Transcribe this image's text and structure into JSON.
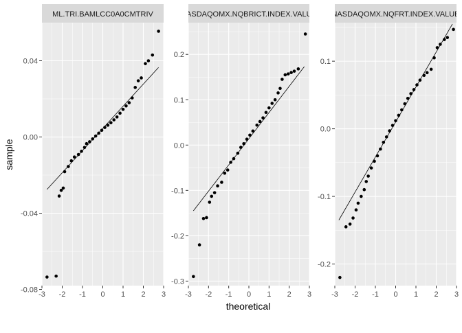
{
  "figure": {
    "xlabel": "theoretical",
    "ylabel": "sample",
    "panel_bg": "#ebebeb",
    "strip_bg": "#d9d9d9",
    "point_color": "#000000",
    "line_color": "#000000"
  },
  "chart_data": [
    {
      "type": "scatter",
      "strip_title": "ML.TRI.BAMLCC0A0CMTRIV",
      "xlim": [
        -3,
        3
      ],
      "ylim": [
        -0.078,
        0.06
      ],
      "x_ticks": [
        -3,
        -2,
        -1,
        0,
        1,
        2,
        3
      ],
      "y_ticks": [
        -0.08,
        -0.04,
        0.0,
        0.04
      ],
      "y_tick_labels": [
        "-0.08",
        "-0.04",
        "0.00",
        "0.04"
      ],
      "grid": true,
      "qq_line": {
        "x": [
          -2.75,
          2.75
        ],
        "y": [
          -0.0275,
          0.0365
        ]
      },
      "points": [
        [
          -2.75,
          -0.0735
        ],
        [
          -2.3,
          -0.073
        ],
        [
          -2.15,
          -0.031
        ],
        [
          -2.05,
          -0.028
        ],
        [
          -1.95,
          -0.0268
        ],
        [
          -1.88,
          -0.0182
        ],
        [
          -1.7,
          -0.0155
        ],
        [
          -1.55,
          -0.0125
        ],
        [
          -1.4,
          -0.0105
        ],
        [
          -1.2,
          -0.0092
        ],
        [
          -1.05,
          -0.0075
        ],
        [
          -0.9,
          -0.0055
        ],
        [
          -0.8,
          -0.0035
        ],
        [
          -0.65,
          -0.0025
        ],
        [
          -0.5,
          -0.001
        ],
        [
          -0.35,
          0.0005
        ],
        [
          -0.2,
          0.002
        ],
        [
          -0.05,
          0.0035
        ],
        [
          0.1,
          0.005
        ],
        [
          0.25,
          0.0062
        ],
        [
          0.4,
          0.0075
        ],
        [
          0.55,
          0.009
        ],
        [
          0.7,
          0.0105
        ],
        [
          0.85,
          0.0125
        ],
        [
          1.0,
          0.0145
        ],
        [
          1.15,
          0.0163
        ],
        [
          1.3,
          0.018
        ],
        [
          1.45,
          0.0205
        ],
        [
          1.6,
          0.026
        ],
        [
          1.75,
          0.0295
        ],
        [
          1.9,
          0.031
        ],
        [
          2.1,
          0.0385
        ],
        [
          2.25,
          0.04
        ],
        [
          2.45,
          0.043
        ],
        [
          2.75,
          0.0555
        ]
      ]
    },
    {
      "type": "scatter",
      "strip_title": "NASDAQOMX.NQBRICT.INDEX.VALUE",
      "xlim": [
        -3,
        3
      ],
      "ylim": [
        -0.31,
        0.27
      ],
      "x_ticks": [
        -3,
        -2,
        -1,
        0,
        1,
        2,
        3
      ],
      "y_ticks": [
        -0.3,
        -0.2,
        -0.1,
        0.0,
        0.1,
        0.2
      ],
      "y_tick_labels": [
        "-0.3",
        "-0.2",
        "-0.1",
        "0.0",
        "0.1",
        "0.2"
      ],
      "grid": true,
      "qq_line": {
        "x": [
          -2.75,
          2.75
        ],
        "y": [
          -0.145,
          0.173
        ]
      },
      "points": [
        [
          -2.75,
          -0.29
        ],
        [
          -2.45,
          -0.22
        ],
        [
          -2.25,
          -0.162
        ],
        [
          -2.1,
          -0.16
        ],
        [
          -1.95,
          -0.126
        ],
        [
          -1.85,
          -0.113
        ],
        [
          -1.7,
          -0.105
        ],
        [
          -1.55,
          -0.09
        ],
        [
          -1.35,
          -0.082
        ],
        [
          -1.2,
          -0.062
        ],
        [
          -1.05,
          -0.055
        ],
        [
          -0.9,
          -0.038
        ],
        [
          -0.75,
          -0.03
        ],
        [
          -0.55,
          -0.018
        ],
        [
          -0.4,
          -0.005
        ],
        [
          -0.25,
          0.003
        ],
        [
          -0.1,
          0.013
        ],
        [
          0.05,
          0.022
        ],
        [
          0.2,
          0.031
        ],
        [
          0.4,
          0.044
        ],
        [
          0.55,
          0.052
        ],
        [
          0.7,
          0.06
        ],
        [
          0.85,
          0.072
        ],
        [
          1.0,
          0.082
        ],
        [
          1.15,
          0.092
        ],
        [
          1.3,
          0.1
        ],
        [
          1.45,
          0.115
        ],
        [
          1.55,
          0.125
        ],
        [
          1.65,
          0.145
        ],
        [
          1.8,
          0.155
        ],
        [
          1.95,
          0.157
        ],
        [
          2.1,
          0.16
        ],
        [
          2.25,
          0.163
        ],
        [
          2.45,
          0.168
        ],
        [
          2.8,
          0.245
        ]
      ]
    },
    {
      "type": "scatter",
      "strip_title": "NASDAQOMX.NQFRT.INDEX.VALUE",
      "xlim": [
        -3,
        3
      ],
      "ylim": [
        -0.232,
        0.157
      ],
      "x_ticks": [
        -3,
        -2,
        -1,
        0,
        1,
        2,
        3
      ],
      "y_ticks": [
        -0.2,
        -0.1,
        0.0,
        0.1
      ],
      "y_tick_labels": [
        "-0.2",
        "-0.1",
        "0.0",
        "0.1"
      ],
      "grid": true,
      "qq_line": {
        "x": [
          -2.8,
          2.8
        ],
        "y": [
          -0.135,
          0.155
        ]
      },
      "points": [
        [
          -2.75,
          -0.22
        ],
        [
          -2.45,
          -0.145
        ],
        [
          -2.25,
          -0.141
        ],
        [
          -2.1,
          -0.132
        ],
        [
          -1.95,
          -0.12
        ],
        [
          -1.85,
          -0.11
        ],
        [
          -1.7,
          -0.1
        ],
        [
          -1.55,
          -0.09
        ],
        [
          -1.45,
          -0.078
        ],
        [
          -1.35,
          -0.07
        ],
        [
          -1.2,
          -0.058
        ],
        [
          -1.05,
          -0.048
        ],
        [
          -0.9,
          -0.04
        ],
        [
          -0.75,
          -0.03
        ],
        [
          -0.6,
          -0.02
        ],
        [
          -0.45,
          -0.012
        ],
        [
          -0.3,
          -0.003
        ],
        [
          -0.15,
          0.005
        ],
        [
          0.0,
          0.012
        ],
        [
          0.15,
          0.02
        ],
        [
          0.3,
          0.028
        ],
        [
          0.45,
          0.037
        ],
        [
          0.6,
          0.045
        ],
        [
          0.75,
          0.052
        ],
        [
          0.9,
          0.058
        ],
        [
          1.05,
          0.065
        ],
        [
          1.2,
          0.072
        ],
        [
          1.4,
          0.079
        ],
        [
          1.55,
          0.083
        ],
        [
          1.75,
          0.088
        ],
        [
          1.9,
          0.105
        ],
        [
          2.05,
          0.12
        ],
        [
          2.2,
          0.125
        ],
        [
          2.4,
          0.132
        ],
        [
          2.55,
          0.135
        ],
        [
          2.85,
          0.147
        ]
      ]
    }
  ]
}
